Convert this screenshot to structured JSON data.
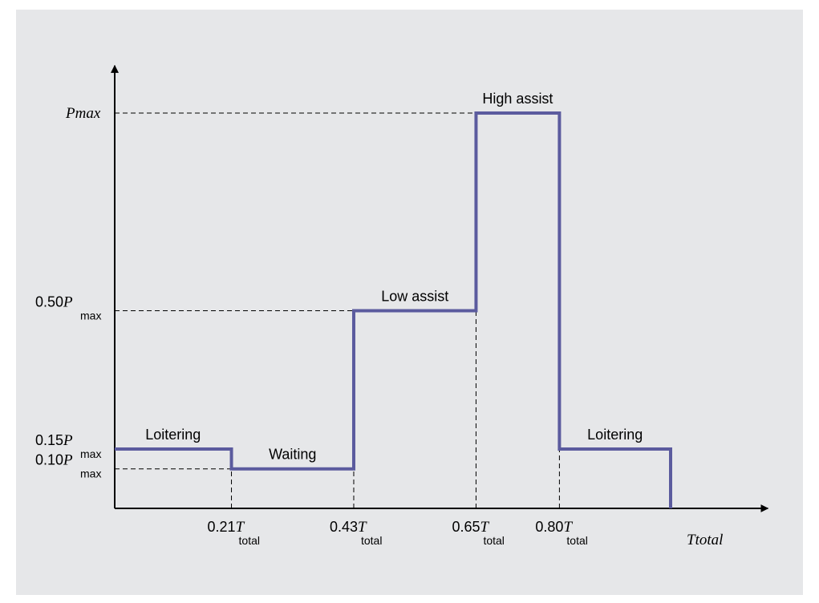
{
  "chart_data": {
    "type": "line",
    "step": true,
    "colors": {
      "series": "#5b5b9e",
      "background": "#e6e7e9",
      "axis": "#000000",
      "guide": "#000000"
    },
    "series": [
      {
        "points": [
          {
            "x": 0.0,
            "y": 0.15
          },
          {
            "x": 0.21,
            "y": 0.15
          },
          {
            "x": 0.21,
            "y": 0.1
          },
          {
            "x": 0.43,
            "y": 0.1
          },
          {
            "x": 0.43,
            "y": 0.5
          },
          {
            "x": 0.65,
            "y": 0.5
          },
          {
            "x": 0.65,
            "y": 1.0
          },
          {
            "x": 0.8,
            "y": 1.0
          },
          {
            "x": 0.8,
            "y": 0.15
          },
          {
            "x": 1.0,
            "y": 0.15
          },
          {
            "x": 1.0,
            "y": 0.0
          }
        ]
      }
    ],
    "xlim": [
      0,
      1.175
    ],
    "ylim": [
      0,
      1.12
    ],
    "y_ticks": [
      {
        "value": 1.0,
        "label": "P",
        "italic": true,
        "sub": "max",
        "sub_italic": true,
        "guide_to_x": 0.65
      },
      {
        "value": 0.5,
        "label": "0.50",
        "var": "P",
        "sub": "max",
        "guide_to_x": 0.43
      },
      {
        "value": 0.15,
        "label": "0.15",
        "var": "P",
        "sub": "max",
        "guide_to_x": null
      },
      {
        "value": 0.1,
        "label": "0.10",
        "var": "P",
        "sub": "max",
        "guide_to_x": 0.21
      }
    ],
    "x_ticks": [
      {
        "value": 0.21,
        "label": "0.21",
        "var": "T",
        "sub": "total",
        "guide_to_y": 0.1
      },
      {
        "value": 0.43,
        "label": "0.43",
        "var": "T",
        "sub": "total",
        "guide_to_y": 0.1
      },
      {
        "value": 0.65,
        "label": "0.65",
        "var": "T",
        "sub": "total",
        "guide_to_y": 0.5
      },
      {
        "value": 0.8,
        "label": "0.80",
        "var": "T",
        "sub": "total",
        "guide_to_y": 0.15
      }
    ],
    "x_axis_label": {
      "value": 1.0,
      "main": "T",
      "sub": "total"
    },
    "annotations": [
      {
        "text": "Loitering",
        "x": 0.105,
        "y": 0.15
      },
      {
        "text": "Waiting",
        "x": 0.32,
        "y": 0.1
      },
      {
        "text": "Low assist",
        "x": 0.54,
        "y": 0.5
      },
      {
        "text": "High assist",
        "x": 0.725,
        "y": 1.0
      },
      {
        "text": "Loitering",
        "x": 0.9,
        "y": 0.15
      }
    ],
    "grid": false,
    "legend": "none"
  }
}
